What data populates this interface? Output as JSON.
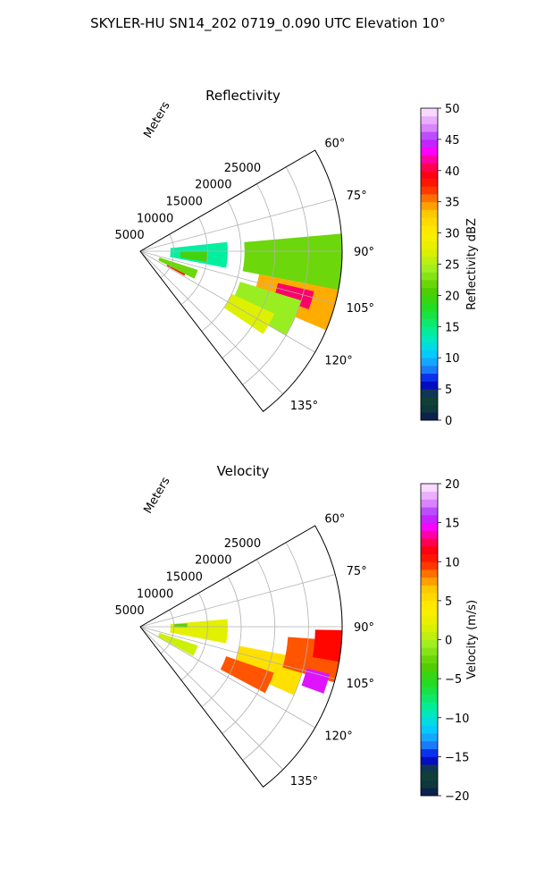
{
  "suptitle": "SKYLER-HU  SN14_202  0719_0.090 UTC Elevation 10°",
  "chart_data": [
    {
      "type": "polar-sector",
      "title": "Reflectivity",
      "radial_label": "Meters",
      "theta_range_deg": [
        60,
        142.5
      ],
      "theta_ticks": [
        60,
        75,
        90,
        105,
        120,
        135
      ],
      "theta_tick_labels": [
        "60°",
        "75°",
        "90°",
        "105°",
        "120°",
        "135°"
      ],
      "r_range": [
        0,
        30000
      ],
      "r_ticks": [
        5000,
        10000,
        15000,
        20000,
        25000
      ],
      "r_tick_labels": [
        "5000",
        "10000",
        "15000",
        "20000",
        "25000"
      ],
      "grid": true,
      "colorbar": {
        "label": "Reflectivity dBZ",
        "range": [
          0,
          50
        ],
        "ticks": [
          0,
          5,
          10,
          15,
          20,
          25,
          30,
          35,
          40,
          45,
          50
        ],
        "tick_labels": [
          "0",
          "5",
          "10",
          "15",
          "20",
          "25",
          "30",
          "35",
          "40",
          "45",
          "50"
        ]
      },
      "echoes": [
        {
          "theta": [
            101,
            113
          ],
          "r": [
            18000,
            30000
          ],
          "value": 34
        },
        {
          "theta": [
            103,
            109
          ],
          "r": [
            21000,
            26500
          ],
          "value": 41
        },
        {
          "theta": [
            93,
            101
          ],
          "r": [
            25500,
            30000
          ],
          "value": 36
        },
        {
          "theta": [
            94,
            99
          ],
          "r": [
            27000,
            29500
          ],
          "value": 43
        },
        {
          "theta": [
            85,
            101
          ],
          "r": [
            15500,
            30000
          ],
          "value": 22
        },
        {
          "theta": [
            107,
            120
          ],
          "r": [
            15500,
            25000
          ],
          "value": 24
        },
        {
          "theta": [
            115,
            124
          ],
          "r": [
            15000,
            22000
          ],
          "value": 27
        },
        {
          "theta": [
            114,
            119
          ],
          "r": [
            4500,
            7500
          ],
          "value": 38
        },
        {
          "theta": [
            108,
            117
          ],
          "r": [
            3000,
            9000
          ],
          "value": 22
        },
        {
          "theta": [
            84,
            101
          ],
          "r": [
            4500,
            13000
          ],
          "value": 14
        },
        {
          "theta": [
            90,
            99
          ],
          "r": [
            6000,
            10000
          ],
          "value": 20
        }
      ]
    },
    {
      "type": "polar-sector",
      "title": "Velocity",
      "radial_label": "Meters",
      "theta_range_deg": [
        60,
        142.5
      ],
      "theta_ticks": [
        60,
        75,
        90,
        105,
        120,
        135
      ],
      "theta_tick_labels": [
        "60°",
        "75°",
        "90°",
        "105°",
        "120°",
        "135°"
      ],
      "r_range": [
        0,
        30000
      ],
      "r_ticks": [
        5000,
        10000,
        15000,
        20000,
        25000
      ],
      "r_tick_labels": [
        "5000",
        "10000",
        "15000",
        "20000",
        "25000"
      ],
      "grid": true,
      "colorbar": {
        "label": "Velocity (m/s)",
        "range": [
          -20,
          20
        ],
        "ticks": [
          -20,
          -15,
          -10,
          -5,
          0,
          5,
          10,
          15,
          20
        ],
        "tick_labels": [
          "−20",
          "−15",
          "−10",
          "−5",
          "0",
          "5",
          "10",
          "15",
          "20"
        ]
      },
      "echoes": [
        {
          "theta": [
            85,
            101
          ],
          "r": [
            4500,
            13000
          ],
          "value": 2
        },
        {
          "theta": [
            108,
            119
          ],
          "r": [
            3000,
            9000
          ],
          "value": 1
        },
        {
          "theta": [
            101,
            114
          ],
          "r": [
            15000,
            25000
          ],
          "value": 5
        },
        {
          "theta": [
            94,
            106
          ],
          "r": [
            22000,
            30000
          ],
          "value": 9
        },
        {
          "theta": [
            91,
            100
          ],
          "r": [
            26000,
            30000
          ],
          "value": 11
        },
        {
          "theta": [
            104,
            110
          ],
          "r": [
            25500,
            29000
          ],
          "value": 15
        },
        {
          "theta": [
            109,
            118
          ],
          "r": [
            13500,
            21000
          ],
          "value": 9
        },
        {
          "theta": [
            86,
            91
          ],
          "r": [
            5000,
            7000
          ],
          "value": -3
        }
      ]
    }
  ]
}
